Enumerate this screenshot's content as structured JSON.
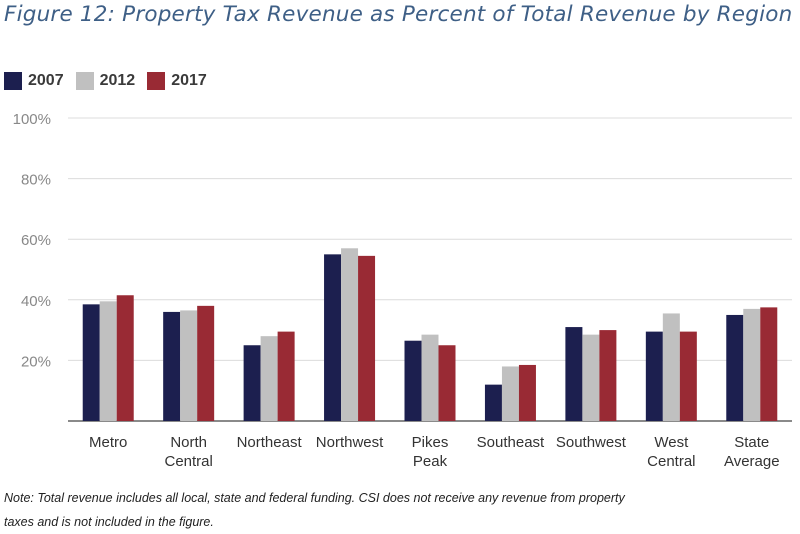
{
  "title": "Figure 12: Property Tax Revenue as Percent of Total Revenue by Region",
  "note_line1": "Note: Total revenue includes all local, state and federal funding. CSI does not receive any revenue from property",
  "note_line2": " taxes and is not included in the figure.",
  "colors": {
    "2007": "#1c1f4f",
    "2012": "#c0c0c0",
    "2017": "#992a34",
    "grid": "#dcdcdc",
    "axis": "#444444"
  },
  "chart_data": {
    "type": "bar",
    "title": "Figure 12: Property Tax Revenue as Percent of Total Revenue by Region",
    "xlabel": "",
    "ylabel": "",
    "ylim": [
      0,
      100
    ],
    "yticks": [
      20,
      40,
      60,
      80,
      100
    ],
    "ytick_labels": [
      "20%",
      "40%",
      "60%",
      "80%",
      "100%"
    ],
    "grid": true,
    "legend_position": "top-left",
    "categories": [
      [
        "Metro"
      ],
      [
        "North",
        "Central"
      ],
      [
        "Northeast"
      ],
      [
        "Northwest"
      ],
      [
        "Pikes",
        "Peak"
      ],
      [
        "Southeast"
      ],
      [
        "Southwest"
      ],
      [
        "West",
        "Central"
      ],
      [
        "State",
        "Average"
      ]
    ],
    "series": [
      {
        "name": "2007",
        "values": [
          38.5,
          36,
          25,
          55,
          26.5,
          12,
          31,
          29.5,
          35
        ]
      },
      {
        "name": "2012",
        "values": [
          39.5,
          36.5,
          28,
          57,
          28.5,
          18,
          28.5,
          35.5,
          37
        ]
      },
      {
        "name": "2017",
        "values": [
          41.5,
          38,
          29.5,
          54.5,
          25,
          18.5,
          30,
          29.5,
          37.5
        ]
      }
    ]
  }
}
